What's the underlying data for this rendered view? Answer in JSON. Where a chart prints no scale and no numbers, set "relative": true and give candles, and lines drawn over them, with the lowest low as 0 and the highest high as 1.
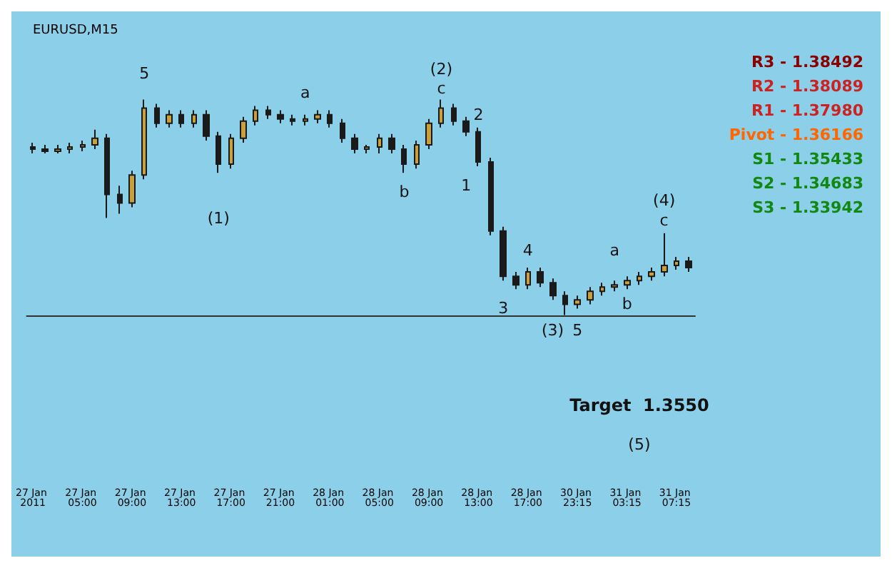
{
  "chart_data": {
    "type": "candlestick",
    "title": "EURUSD,M15",
    "relative": true,
    "color": "#1a1a1a",
    "categories": [
      "27 Jan 2011",
      null,
      null,
      null,
      "27 Jan 05:00",
      null,
      null,
      null,
      "27 Jan 09:00",
      null,
      null,
      null,
      "27 Jan 13:00",
      null,
      null,
      null,
      "27 Jan 17:00",
      null,
      null,
      null,
      "27 Jan 21:00",
      null,
      null,
      null,
      "28 Jan 01:00",
      null,
      null,
      null,
      "28 Jan 05:00",
      null,
      null,
      null,
      "28 Jan 09:00",
      null,
      null,
      null,
      "28 Jan 13:00",
      null,
      null,
      null,
      "28 Jan 17:00",
      null,
      null,
      null,
      "30 Jan 23:15",
      null,
      null,
      null,
      "31 Jan 03:15",
      null,
      null,
      null,
      "31 Jan 07:15",
      null
    ],
    "ohlc": [
      [
        0.78,
        0.8,
        0.75,
        0.77
      ],
      [
        0.77,
        0.79,
        0.75,
        0.76
      ],
      [
        0.76,
        0.79,
        0.75,
        0.77
      ],
      [
        0.77,
        0.8,
        0.75,
        0.78
      ],
      [
        0.78,
        0.81,
        0.76,
        0.79
      ],
      [
        0.79,
        0.86,
        0.77,
        0.82
      ],
      [
        0.82,
        0.84,
        0.45,
        0.56
      ],
      [
        0.56,
        0.6,
        0.47,
        0.52
      ],
      [
        0.52,
        0.67,
        0.5,
        0.65
      ],
      [
        0.65,
        1.0,
        0.63,
        0.96
      ],
      [
        0.96,
        0.98,
        0.87,
        0.89
      ],
      [
        0.89,
        0.95,
        0.87,
        0.93
      ],
      [
        0.93,
        0.95,
        0.87,
        0.89
      ],
      [
        0.89,
        0.95,
        0.87,
        0.93
      ],
      [
        0.93,
        0.95,
        0.81,
        0.83
      ],
      [
        0.83,
        0.85,
        0.66,
        0.7
      ],
      [
        0.7,
        0.84,
        0.68,
        0.82
      ],
      [
        0.82,
        0.92,
        0.8,
        0.9
      ],
      [
        0.9,
        0.97,
        0.88,
        0.95
      ],
      [
        0.95,
        0.97,
        0.91,
        0.93
      ],
      [
        0.93,
        0.95,
        0.89,
        0.91
      ],
      [
        0.91,
        0.93,
        0.88,
        0.9
      ],
      [
        0.9,
        0.93,
        0.88,
        0.91
      ],
      [
        0.91,
        0.95,
        0.89,
        0.93
      ],
      [
        0.93,
        0.95,
        0.87,
        0.89
      ],
      [
        0.89,
        0.91,
        0.8,
        0.82
      ],
      [
        0.82,
        0.84,
        0.75,
        0.77
      ],
      [
        0.77,
        0.79,
        0.75,
        0.78
      ],
      [
        0.78,
        0.84,
        0.75,
        0.82
      ],
      [
        0.82,
        0.84,
        0.75,
        0.77
      ],
      [
        0.77,
        0.79,
        0.66,
        0.7
      ],
      [
        0.7,
        0.81,
        0.68,
        0.79
      ],
      [
        0.79,
        0.91,
        0.77,
        0.89
      ],
      [
        0.89,
        1.0,
        0.87,
        0.96
      ],
      [
        0.96,
        0.98,
        0.88,
        0.9
      ],
      [
        0.9,
        0.92,
        0.83,
        0.85
      ],
      [
        0.85,
        0.87,
        0.69,
        0.71
      ],
      [
        0.71,
        0.73,
        0.37,
        0.39
      ],
      [
        0.39,
        0.41,
        0.16,
        0.18
      ],
      [
        0.18,
        0.2,
        0.12,
        0.14
      ],
      [
        0.14,
        0.22,
        0.12,
        0.2
      ],
      [
        0.2,
        0.22,
        0.13,
        0.15
      ],
      [
        0.15,
        0.17,
        0.07,
        0.09
      ],
      [
        0.09,
        0.11,
        0.0,
        0.05
      ],
      [
        0.05,
        0.09,
        0.03,
        0.07
      ],
      [
        0.07,
        0.13,
        0.05,
        0.11
      ],
      [
        0.11,
        0.15,
        0.09,
        0.13
      ],
      [
        0.13,
        0.16,
        0.11,
        0.14
      ],
      [
        0.14,
        0.18,
        0.12,
        0.16
      ],
      [
        0.16,
        0.2,
        0.14,
        0.18
      ],
      [
        0.18,
        0.22,
        0.16,
        0.2
      ],
      [
        0.2,
        0.38,
        0.18,
        0.23
      ],
      [
        0.23,
        0.27,
        0.21,
        0.25
      ],
      [
        0.25,
        0.27,
        0.2,
        0.22
      ]
    ],
    "annotations": [
      "5",
      "a",
      "(2)",
      "c",
      "2",
      "1",
      "b",
      "(1)",
      "3",
      "4",
      "(3)",
      "5",
      "a",
      "b",
      "c",
      "(4)",
      "Target  1.3550",
      "(5)",
      "R3 - 1.38492",
      "R2 - 1.38089",
      "R1 - 1.37980",
      "Pivot - 1.36166",
      "S1 - 1.35433",
      "S2 - 1.34683",
      "S3 - 1.33942"
    ],
    "grid": false
  }
}
